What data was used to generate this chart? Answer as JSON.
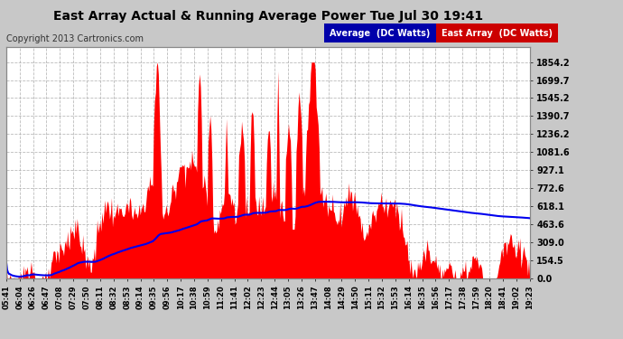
{
  "title": "East Array Actual & Running Average Power Tue Jul 30 19:41",
  "copyright": "Copyright 2013 Cartronics.com",
  "legend_avg": "Average  (DC Watts)",
  "legend_east": "East Array  (DC Watts)",
  "ytick_values": [
    0.0,
    154.5,
    309.0,
    463.6,
    618.1,
    772.6,
    927.1,
    1081.6,
    1236.2,
    1390.7,
    1545.2,
    1699.7,
    1854.2
  ],
  "ymax": 1980,
  "fig_bg_color": "#c8c8c8",
  "plot_bg_color": "#ffffff",
  "grid_color": "#aaaaaa",
  "fill_color": "#ff0000",
  "line_color": "#0000ee",
  "title_color": "#000000",
  "legend_bg_color": "#000080",
  "xtick_labels": [
    "05:41",
    "06:04",
    "06:26",
    "06:47",
    "07:08",
    "07:29",
    "07:50",
    "08:11",
    "08:32",
    "08:53",
    "09:14",
    "09:35",
    "09:56",
    "10:17",
    "10:38",
    "10:59",
    "11:20",
    "11:41",
    "12:02",
    "12:23",
    "12:44",
    "13:05",
    "13:26",
    "13:47",
    "14:08",
    "14:29",
    "14:50",
    "15:11",
    "15:32",
    "15:53",
    "16:14",
    "16:35",
    "16:56",
    "17:17",
    "17:38",
    "17:59",
    "18:20",
    "18:41",
    "19:02",
    "19:23"
  ]
}
